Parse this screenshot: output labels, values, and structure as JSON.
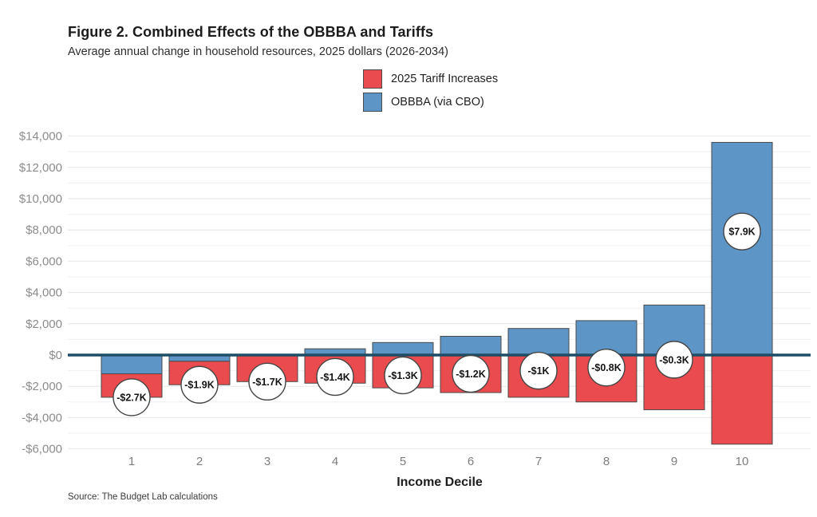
{
  "figure": {
    "title": "Figure 2. Combined Effects of the OBBBA and Tariffs",
    "subtitle": "Average annual change in household resources, 2025 dollars (2026-2034)",
    "source": "Source: The Budget Lab calculations"
  },
  "legend": {
    "items": [
      {
        "label": "2025 Tariff Increases",
        "color": "#EA4B4F"
      },
      {
        "label": "OBBBA (via CBO)",
        "color": "#5E95C7"
      }
    ]
  },
  "chart_data": {
    "type": "bar",
    "stacked": true,
    "title": "Figure 2. Combined Effects of the OBBBA and Tariffs",
    "subtitle": "Average annual change in household resources, 2025 dollars (2026-2034)",
    "xlabel": "Income Decile",
    "ylabel": "",
    "categories": [
      "1",
      "2",
      "3",
      "4",
      "5",
      "6",
      "7",
      "8",
      "9",
      "10"
    ],
    "series": [
      {
        "name": "2025 Tariff Increases",
        "color": "#EA4B4F",
        "values": [
          -1500,
          -1500,
          -1700,
          -1800,
          -2100,
          -2400,
          -2700,
          -3000,
          -3500,
          -5700
        ]
      },
      {
        "name": "OBBBA (via CBO)",
        "color": "#5E95C7",
        "values": [
          -1200,
          -400,
          0,
          400,
          800,
          1200,
          1700,
          2200,
          3200,
          13600
        ]
      }
    ],
    "net_values": [
      -2700,
      -1900,
      -1700,
      -1400,
      -1300,
      -1200,
      -1000,
      -800,
      -300,
      7900
    ],
    "net_labels": [
      "-$2.7K",
      "-$1.9K",
      "-$1.7K",
      "-$1.4K",
      "-$1.3K",
      "-$1.2K",
      "-$1K",
      "-$0.8K",
      "-$0.3K",
      "$7.9K"
    ],
    "yticks": [
      {
        "value": 14000,
        "label": "$14,000"
      },
      {
        "value": 12000,
        "label": "$12,000"
      },
      {
        "value": 10000,
        "label": "$10,000"
      },
      {
        "value": 8000,
        "label": "$8,000"
      },
      {
        "value": 6000,
        "label": "$6,000"
      },
      {
        "value": 4000,
        "label": "$4,000"
      },
      {
        "value": 2000,
        "label": "$2,000"
      },
      {
        "value": 0,
        "label": "$0"
      },
      {
        "value": -2000,
        "label": "-$2,000"
      },
      {
        "value": -4000,
        "label": "-$4,000"
      },
      {
        "value": -6000,
        "label": "-$6,000"
      }
    ],
    "ylim": [
      -6300,
      14400
    ],
    "grid": true,
    "grid_interval": 1000,
    "legend_position": "top-center"
  },
  "colors": {
    "zero_line": "#1D4E66",
    "bar_outline": "#4a4a4a",
    "grid_major": "#e6e6e6",
    "grid_minor": "#f0f0f0",
    "circle_fill": "#ffffff",
    "circle_outline": "#454545",
    "circle_text": "#141414",
    "y_axis_text": "#8c8c8c",
    "x_tick_text": "#7d7d7d",
    "x_axis_title_text": "#1c1c1c"
  }
}
